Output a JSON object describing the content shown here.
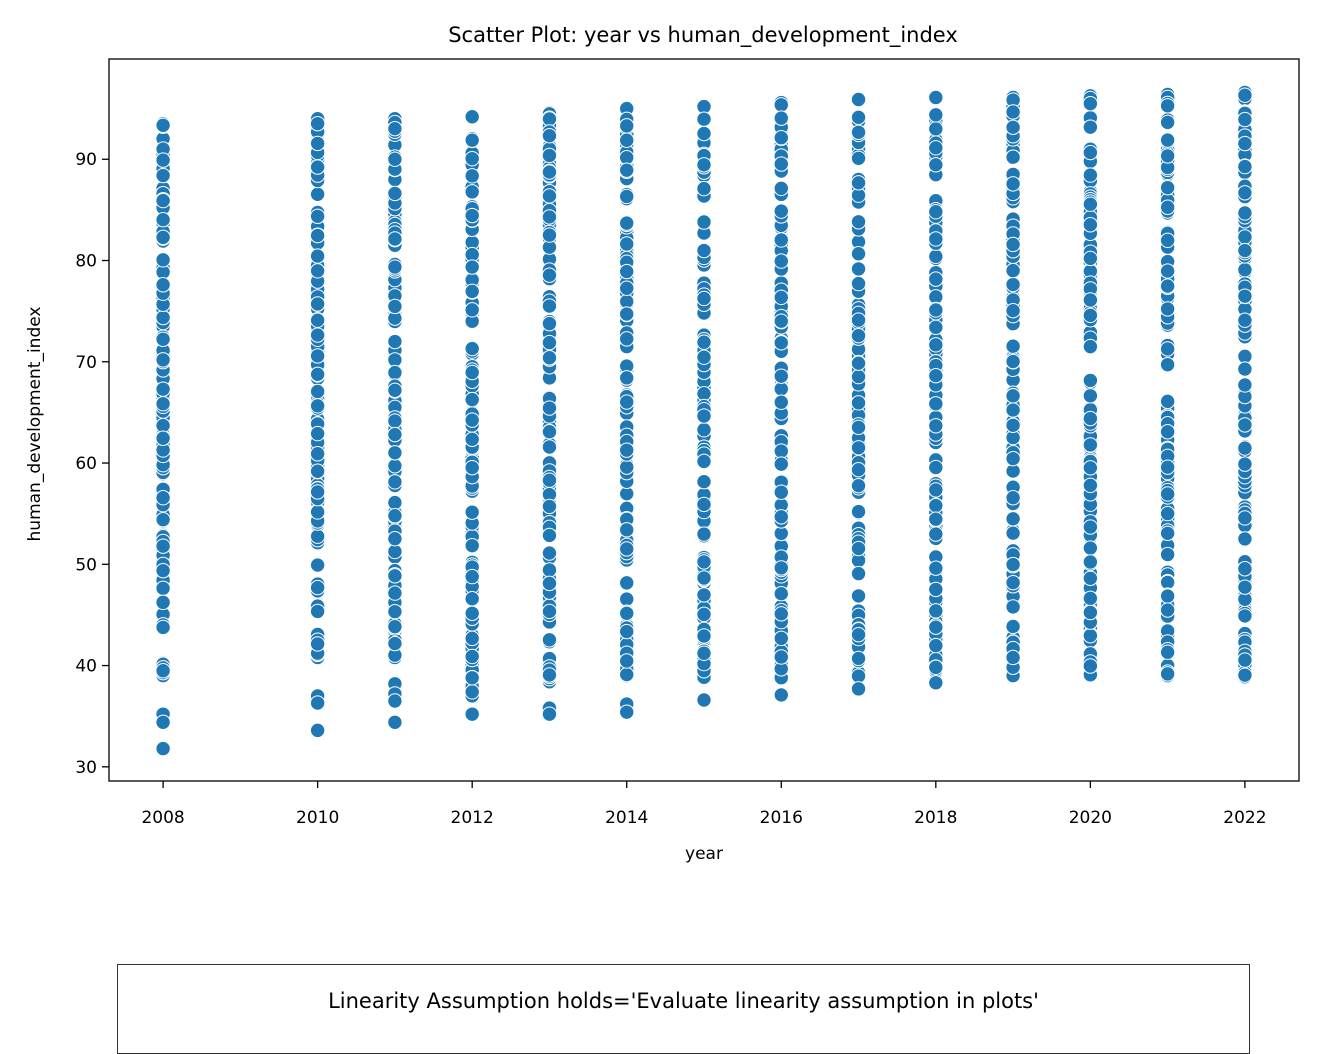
{
  "chart_data": {
    "type": "scatter",
    "title": "Scatter Plot: year vs human_development_index",
    "xlabel": "year",
    "ylabel": "human_development_index",
    "xlim": [
      2007.3,
      2022.7
    ],
    "ylim": [
      28.6,
      99.9
    ],
    "xticks": [
      2008,
      2010,
      2012,
      2014,
      2016,
      2018,
      2020,
      2022
    ],
    "yticks": [
      30,
      40,
      50,
      60,
      70,
      80,
      90
    ],
    "grid": false,
    "marker_color": "#1f77b4",
    "series": [
      {
        "points": [
          {
            "x": 2008,
            "y_min": 39,
            "y_max": 93.5,
            "outliers": [
              35.2,
              34.4,
              31.8
            ]
          },
          {
            "x": 2010,
            "y_min": 40.8,
            "y_max": 94,
            "outliers": [
              37,
              36.3,
              33.6
            ]
          },
          {
            "x": 2011,
            "y_min": 40.8,
            "y_max": 94,
            "outliers": [
              38.2,
              37.2,
              36.5,
              34.4
            ]
          },
          {
            "x": 2012,
            "y_min": 37,
            "y_max": 94.2,
            "outliers": [
              35.2
            ]
          },
          {
            "x": 2013,
            "y_min": 38.4,
            "y_max": 94.6,
            "outliers": [
              35.8,
              35.2
            ]
          },
          {
            "x": 2014,
            "y_min": 39,
            "y_max": 95,
            "outliers": [
              36.2,
              35.4
            ]
          },
          {
            "x": 2015,
            "y_min": 38.8,
            "y_max": 95.2,
            "outliers": [
              36.6
            ]
          },
          {
            "x": 2016,
            "y_min": 38.8,
            "y_max": 95.6,
            "outliers": [
              37.1
            ]
          },
          {
            "x": 2017,
            "y_min": 38.8,
            "y_max": 95.9,
            "outliers": [
              37.7
            ]
          },
          {
            "x": 2018,
            "y_min": 39.4,
            "y_max": 96.1,
            "outliers": [
              38.3
            ]
          },
          {
            "x": 2019,
            "y_min": 39,
            "y_max": 96.1,
            "outliers": []
          },
          {
            "x": 2020,
            "y_min": 39,
            "y_max": 96.3,
            "outliers": []
          },
          {
            "x": 2021,
            "y_min": 39,
            "y_max": 96.4,
            "outliers": []
          },
          {
            "x": 2022,
            "y_min": 38.8,
            "y_max": 96.6,
            "outliers": []
          }
        ]
      }
    ]
  },
  "note": {
    "text": "Linearity Assumption holds='Evaluate linearity assumption in plots'"
  }
}
